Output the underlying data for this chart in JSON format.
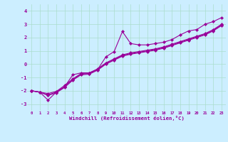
{
  "x_data": [
    0,
    1,
    2,
    3,
    4,
    5,
    6,
    7,
    8,
    9,
    10,
    11,
    12,
    13,
    14,
    15,
    16,
    17,
    18,
    19,
    20,
    21,
    22,
    23
  ],
  "line1": [
    -2.0,
    -2.1,
    -2.7,
    -2.1,
    -1.7,
    -0.8,
    -0.65,
    -0.65,
    -0.4,
    0.55,
    0.95,
    2.45,
    1.55,
    1.45,
    1.45,
    1.55,
    1.65,
    1.85,
    2.2,
    2.5,
    2.6,
    3.0,
    3.2,
    3.5
  ],
  "line2": [
    -2.0,
    -2.1,
    -2.2,
    -2.05,
    -1.6,
    -1.1,
    -0.7,
    -0.65,
    -0.35,
    0.1,
    0.4,
    0.7,
    0.85,
    0.95,
    1.05,
    1.15,
    1.3,
    1.5,
    1.7,
    1.9,
    2.1,
    2.3,
    2.6,
    3.0
  ],
  "line3": [
    -2.0,
    -2.1,
    -2.3,
    -2.1,
    -1.7,
    -1.15,
    -0.75,
    -0.7,
    -0.4,
    0.05,
    0.35,
    0.65,
    0.8,
    0.9,
    1.0,
    1.1,
    1.25,
    1.45,
    1.65,
    1.85,
    2.05,
    2.25,
    2.55,
    2.95
  ],
  "line4": [
    -2.0,
    -2.1,
    -2.35,
    -2.15,
    -1.75,
    -1.2,
    -0.8,
    -0.75,
    -0.45,
    0.0,
    0.3,
    0.6,
    0.75,
    0.85,
    0.95,
    1.05,
    1.2,
    1.4,
    1.6,
    1.8,
    2.0,
    2.2,
    2.5,
    2.9
  ],
  "xlabel": "Windchill (Refroidissement éolien,°C)",
  "xlim": [
    -0.5,
    23.5
  ],
  "ylim": [
    -3.5,
    4.5
  ],
  "yticks": [
    -3,
    -2,
    -1,
    0,
    1,
    2,
    3,
    4
  ],
  "xticks": [
    0,
    1,
    2,
    3,
    4,
    5,
    6,
    7,
    8,
    9,
    10,
    11,
    12,
    13,
    14,
    15,
    16,
    17,
    18,
    19,
    20,
    21,
    22,
    23
  ],
  "line_color": "#990099",
  "bg_color": "#cceeff",
  "grid_color": "#aaddcc",
  "marker": "D",
  "markersize": 2.2,
  "linewidth": 0.8
}
